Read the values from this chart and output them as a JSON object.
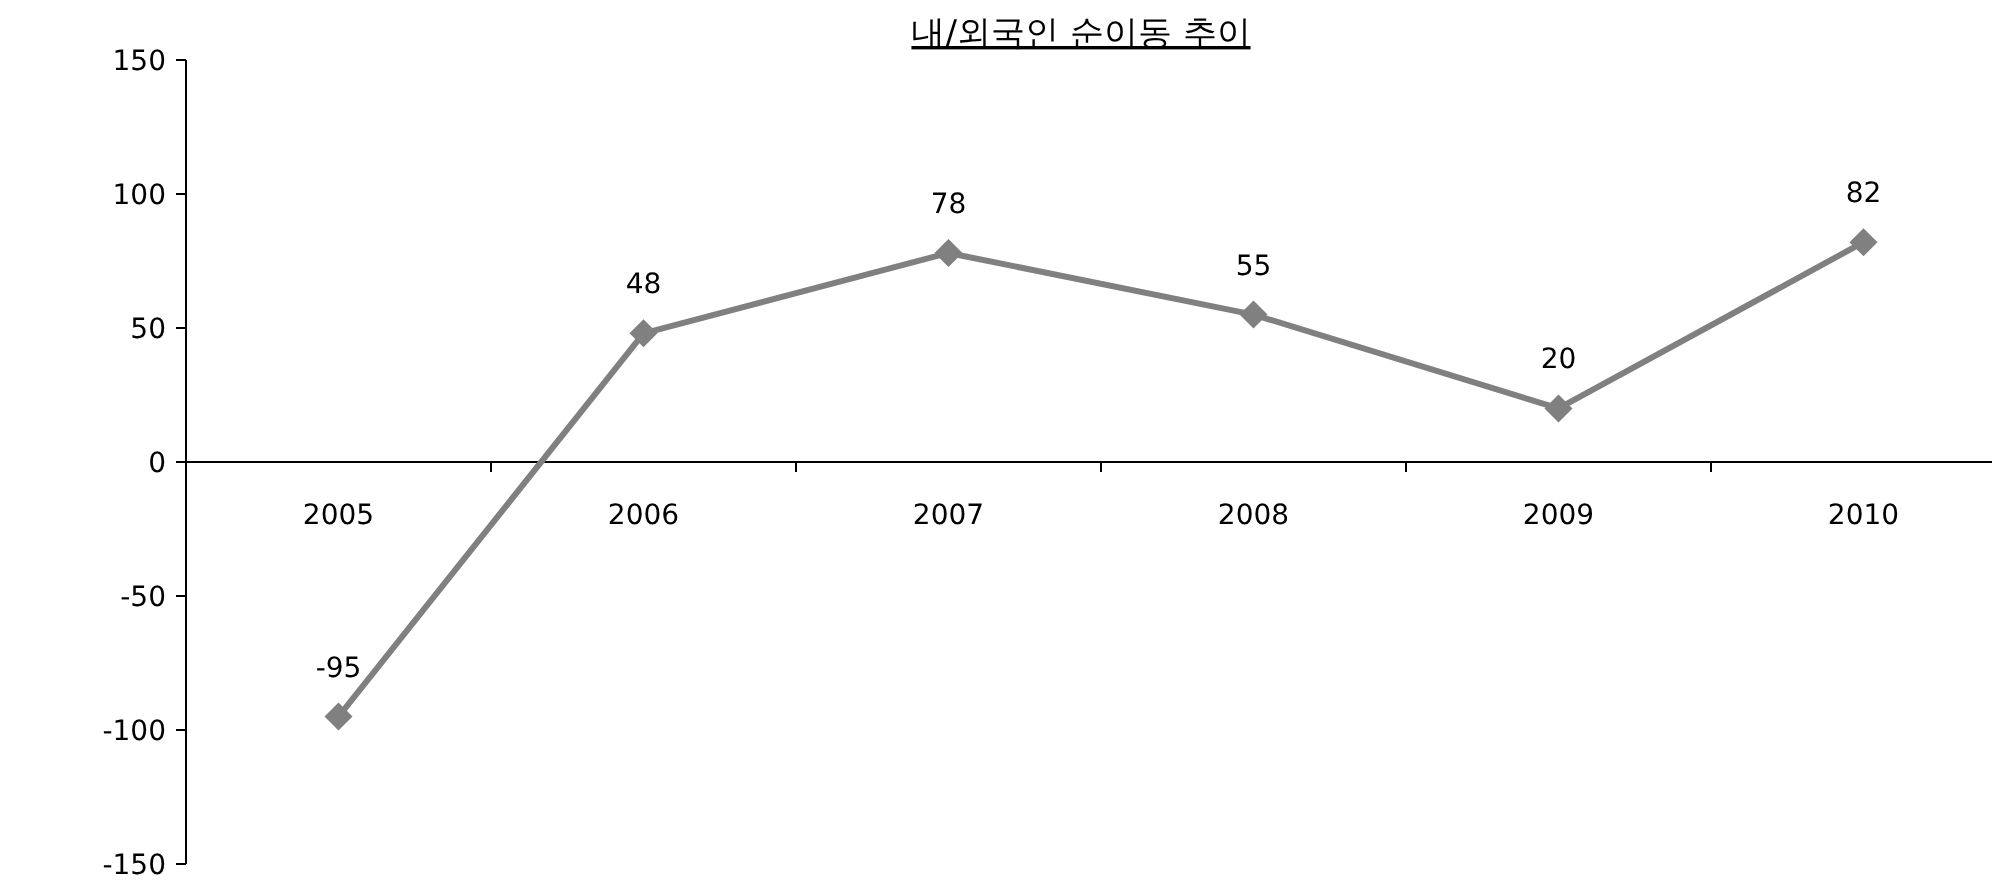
{
  "chart_data": {
    "type": "line",
    "title": "내/외국인 순이동 추이",
    "categories": [
      "2005",
      "2006",
      "2007",
      "2008",
      "2009",
      "2010"
    ],
    "series": [
      {
        "color": "#808080",
        "values": [
          -95,
          48,
          78,
          55,
          20,
          82
        ]
      }
    ],
    "ylim": [
      -150,
      150
    ],
    "yticks": [
      -150,
      -100,
      -50,
      0,
      50,
      100,
      150
    ],
    "data_labels": true,
    "marker": "diamond",
    "line_style": "solid",
    "grid": false
  }
}
